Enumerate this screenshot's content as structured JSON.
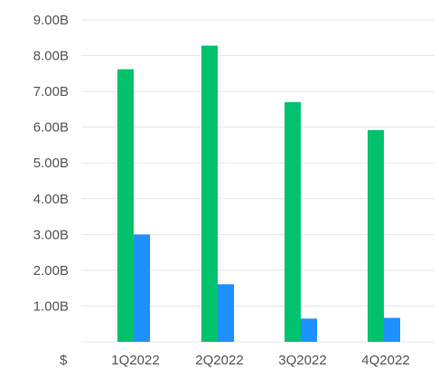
{
  "chart_data": {
    "type": "bar",
    "title": "",
    "xlabel": "",
    "ylabel": "",
    "categories": [
      "1Q2022",
      "2Q2022",
      "3Q2022",
      "4Q2022"
    ],
    "series": [
      {
        "color": "#00c26e",
        "values": [
          7.62,
          8.28,
          6.7,
          5.92
        ]
      },
      {
        "color": "#1e90ff",
        "values": [
          3.0,
          1.61,
          0.65,
          0.67
        ]
      }
    ],
    "y_tick_values": [
      0,
      1,
      2,
      3,
      4,
      5,
      6,
      7,
      8,
      9
    ],
    "y_tick_labels": [
      "$",
      "1.00B",
      "2.00B",
      "3.00B",
      "4.00B",
      "5.00B",
      "6.00B",
      "7.00B",
      "8.00B",
      "9.00B"
    ],
    "ylim": [
      0,
      9
    ],
    "grid": true,
    "gridline_color": "#e6e6e6",
    "legend": "none"
  }
}
